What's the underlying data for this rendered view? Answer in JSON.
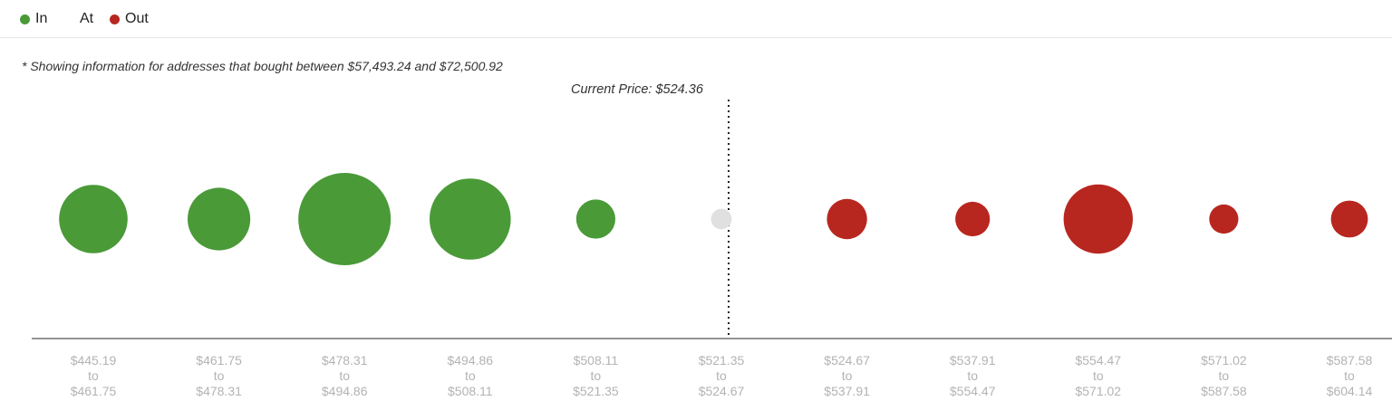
{
  "legend": [
    {
      "label": "In",
      "color": "#4a9a38"
    },
    {
      "label": "At",
      "color": ""
    },
    {
      "label": "Out",
      "color": "#b8271f"
    }
  ],
  "note": "* Showing information for addresses that bought between $57,493.24 and $72,500.92",
  "current_price_label": "Current Price: $524.36",
  "chart_data": {
    "type": "scatter",
    "title": "",
    "current_price": 524.36,
    "categories": [
      {
        "from": "$445.19",
        "to": "$461.75",
        "status": "in",
        "relative_size": 0.55
      },
      {
        "from": "$461.75",
        "to": "$478.31",
        "status": "in",
        "relative_size": 0.46
      },
      {
        "from": "$478.31",
        "to": "$494.86",
        "status": "in",
        "relative_size": 1.0
      },
      {
        "from": "$494.86",
        "to": "$508.11",
        "status": "in",
        "relative_size": 0.77
      },
      {
        "from": "$508.11",
        "to": "$521.35",
        "status": "in",
        "relative_size": 0.18
      },
      {
        "from": "$521.35",
        "to": "$524.67",
        "status": "at",
        "relative_size": 0.05
      },
      {
        "from": "$524.67",
        "to": "$537.91",
        "status": "out",
        "relative_size": 0.19
      },
      {
        "from": "$537.91",
        "to": "$554.47",
        "status": "out",
        "relative_size": 0.14
      },
      {
        "from": "$554.47",
        "to": "$571.02",
        "status": "out",
        "relative_size": 0.56
      },
      {
        "from": "$571.02",
        "to": "$587.58",
        "status": "out",
        "relative_size": 0.1
      },
      {
        "from": "$587.58",
        "to": "$604.14",
        "status": "out",
        "relative_size": 0.16
      }
    ],
    "tick_connector": "to",
    "colors": {
      "in": "#4a9a38",
      "at": "#e0e0e0",
      "out": "#b8271f"
    }
  }
}
